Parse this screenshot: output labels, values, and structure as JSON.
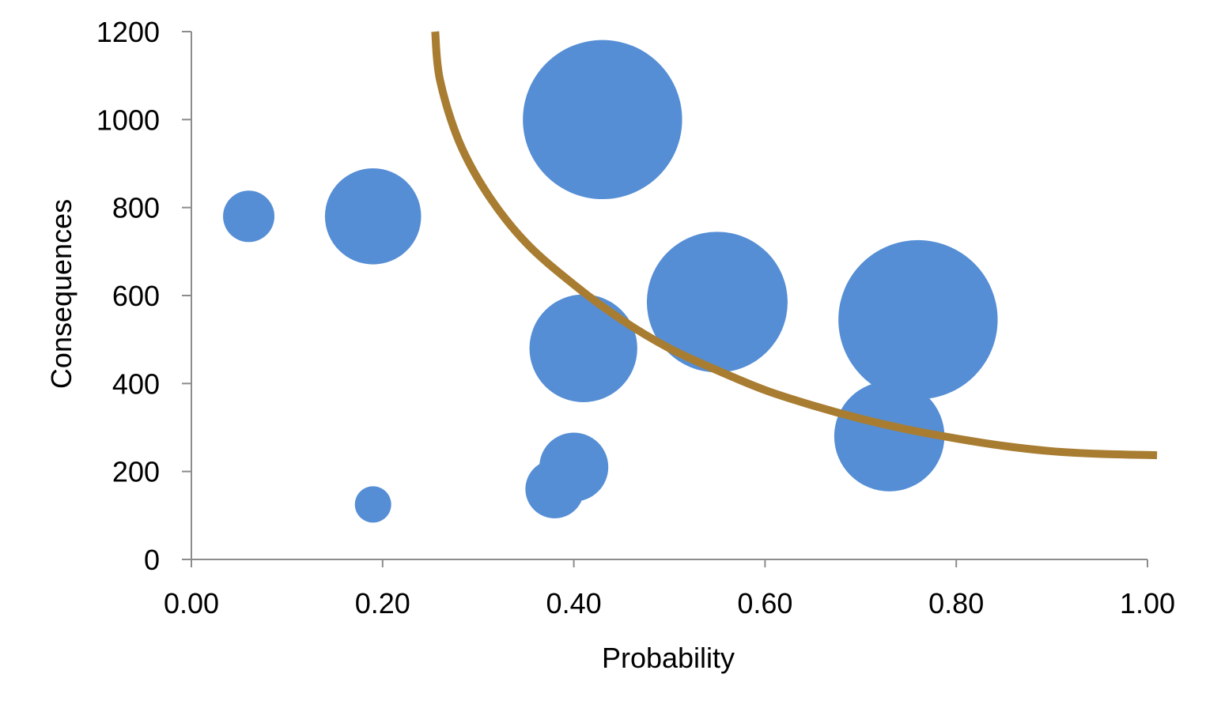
{
  "chart_data": {
    "type": "scatter",
    "subtype": "bubble",
    "xlabel": "Probability",
    "ylabel": "Consequences",
    "xlim": [
      0,
      1
    ],
    "ylim": [
      0,
      1200
    ],
    "x_ticks": [
      "0.00",
      "0.20",
      "0.40",
      "0.60",
      "0.80",
      "1.00"
    ],
    "y_ticks": [
      "0",
      "200",
      "400",
      "600",
      "800",
      "1000",
      "1200"
    ],
    "grid": false,
    "legend": "none",
    "bubble_color": "#558ed5",
    "curve_color": "#a87d32",
    "series": [
      {
        "points": [
          {
            "x": 0.06,
            "y": 780,
            "size": 1
          },
          {
            "x": 0.19,
            "y": 780,
            "size": 3.5
          },
          {
            "x": 0.19,
            "y": 125,
            "size": 0.5
          },
          {
            "x": 0.38,
            "y": 160,
            "size": 1.3
          },
          {
            "x": 0.4,
            "y": 210,
            "size": 1.8
          },
          {
            "x": 0.41,
            "y": 480,
            "size": 4.4
          },
          {
            "x": 0.43,
            "y": 1000,
            "size": 9.6
          },
          {
            "x": 0.55,
            "y": 585,
            "size": 7.5
          },
          {
            "x": 0.73,
            "y": 280,
            "size": 4.6
          },
          {
            "x": 0.76,
            "y": 545,
            "size": 9.6
          }
        ]
      }
    ],
    "threshold_curve": [
      {
        "x": 0.255,
        "y": 1200
      },
      {
        "x": 0.26,
        "y": 1090
      },
      {
        "x": 0.28,
        "y": 950
      },
      {
        "x": 0.31,
        "y": 830
      },
      {
        "x": 0.35,
        "y": 720
      },
      {
        "x": 0.4,
        "y": 625
      },
      {
        "x": 0.45,
        "y": 545
      },
      {
        "x": 0.5,
        "y": 480
      },
      {
        "x": 0.55,
        "y": 430
      },
      {
        "x": 0.6,
        "y": 385
      },
      {
        "x": 0.65,
        "y": 350
      },
      {
        "x": 0.7,
        "y": 320
      },
      {
        "x": 0.75,
        "y": 295
      },
      {
        "x": 0.8,
        "y": 275
      },
      {
        "x": 0.85,
        "y": 258
      },
      {
        "x": 0.9,
        "y": 246
      },
      {
        "x": 0.95,
        "y": 240
      },
      {
        "x": 1.01,
        "y": 237
      }
    ]
  }
}
